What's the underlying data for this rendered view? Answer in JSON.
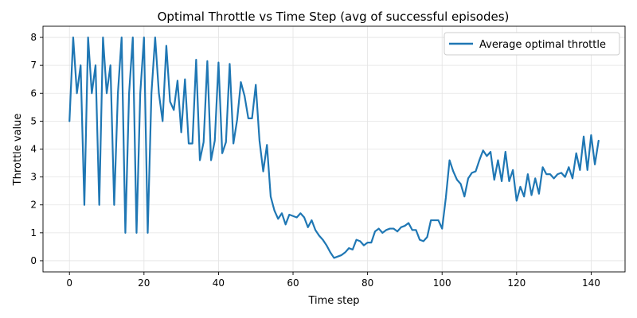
{
  "chart_data": {
    "type": "line",
    "title": "Optimal Throttle vs Time Step (avg of successful episodes)",
    "xlabel": "Time step",
    "ylabel": "Throttle value",
    "xlim": [
      -7.1,
      149.1
    ],
    "ylim": [
      -0.4,
      8.4
    ],
    "xticks": [
      0,
      20,
      40,
      60,
      80,
      100,
      120,
      140
    ],
    "yticks": [
      0,
      1,
      2,
      3,
      4,
      5,
      6,
      7,
      8
    ],
    "grid": true,
    "legend_position": "top-right",
    "series": [
      {
        "name": "Average optimal throttle",
        "color": "#1f77b4",
        "x": [
          0,
          1,
          2,
          3,
          4,
          5,
          6,
          7,
          8,
          9,
          10,
          11,
          12,
          13,
          14,
          15,
          16,
          17,
          18,
          19,
          20,
          21,
          22,
          23,
          24,
          25,
          26,
          27,
          28,
          29,
          30,
          31,
          32,
          33,
          34,
          35,
          36,
          37,
          38,
          39,
          40,
          41,
          42,
          43,
          44,
          45,
          46,
          47,
          48,
          49,
          50,
          51,
          52,
          53,
          54,
          55,
          56,
          57,
          58,
          59,
          60,
          61,
          62,
          63,
          64,
          65,
          66,
          67,
          68,
          69,
          70,
          71,
          72,
          73,
          74,
          75,
          76,
          77,
          78,
          79,
          80,
          81,
          82,
          83,
          84,
          85,
          86,
          87,
          88,
          89,
          90,
          91,
          92,
          93,
          94,
          95,
          96,
          97,
          98,
          99,
          100,
          101,
          102,
          103,
          104,
          105,
          106,
          107,
          108,
          109,
          110,
          111,
          112,
          113,
          114,
          115,
          116,
          117,
          118,
          119,
          120,
          121,
          122,
          123,
          124,
          125,
          126,
          127,
          128,
          129,
          130,
          131,
          132,
          133,
          134,
          135,
          136,
          137,
          138,
          139,
          140,
          141,
          142
        ],
        "values": [
          5.0,
          8.0,
          6.0,
          7.0,
          2.0,
          8.0,
          6.0,
          7.0,
          2.0,
          8.0,
          6.0,
          7.0,
          2.0,
          6.0,
          8.0,
          1.0,
          6.0,
          8.0,
          1.0,
          6.0,
          8.0,
          1.0,
          6.0,
          8.0,
          6.0,
          5.0,
          7.7,
          5.7,
          5.4,
          6.45,
          4.6,
          6.5,
          4.2,
          4.2,
          7.2,
          3.6,
          4.25,
          7.15,
          3.6,
          4.3,
          7.1,
          3.85,
          4.25,
          7.05,
          4.2,
          5.05,
          6.4,
          5.9,
          5.1,
          5.1,
          6.3,
          4.3,
          3.2,
          4.15,
          2.3,
          1.8,
          1.5,
          1.7,
          1.3,
          1.65,
          1.6,
          1.55,
          1.7,
          1.55,
          1.2,
          1.45,
          1.1,
          0.9,
          0.75,
          0.55,
          0.3,
          0.1,
          0.15,
          0.2,
          0.3,
          0.45,
          0.4,
          0.75,
          0.7,
          0.55,
          0.65,
          0.65,
          1.05,
          1.15,
          1.0,
          1.1,
          1.15,
          1.15,
          1.05,
          1.2,
          1.25,
          1.35,
          1.1,
          1.1,
          0.75,
          0.7,
          0.85,
          1.45,
          1.45,
          1.45,
          1.15,
          2.25,
          3.6,
          3.2,
          2.9,
          2.75,
          2.3,
          2.95,
          3.15,
          3.2,
          3.6,
          3.95,
          3.75,
          3.9,
          2.9,
          3.6,
          2.85,
          3.9,
          2.85,
          3.25,
          2.15,
          2.65,
          2.3,
          3.1,
          2.35,
          2.95,
          2.4,
          3.35,
          3.1,
          3.1,
          2.95,
          3.1,
          3.15,
          3.0,
          3.35,
          2.95,
          3.85,
          3.25,
          4.45,
          3.25,
          4.5,
          3.45,
          4.3
        ]
      }
    ]
  }
}
